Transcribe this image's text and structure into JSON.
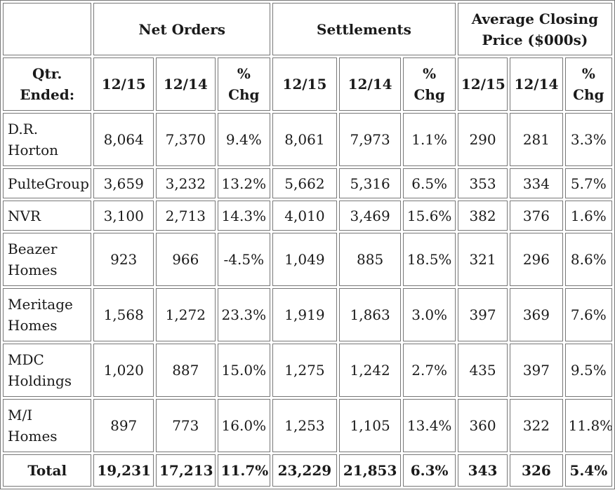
{
  "table": {
    "group_headers": {
      "net_orders": "Net Orders",
      "settlements": "Settlements",
      "avg_price_line1": "Average Closing",
      "avg_price_line2": "Price ($000s)"
    },
    "sub_headers": {
      "qtr_line1": "Qtr.",
      "qtr_line2": "Ended:",
      "col_1215": "12/15",
      "col_1214": "12/14",
      "pct": "%",
      "chg": "Chg"
    },
    "rows": [
      {
        "company_line1": "D.R.",
        "company_line2": "Horton",
        "no_1215": "8,064",
        "no_1214": "7,370",
        "no_chg": "9.4%",
        "st_1215": "8,061",
        "st_1214": "7,973",
        "st_chg": "1.1%",
        "ap_1215": "290",
        "ap_1214": "281",
        "ap_chg": "3.3%"
      },
      {
        "company_line1": "PulteGroup",
        "company_line2": "",
        "no_1215": "3,659",
        "no_1214": "3,232",
        "no_chg": "13.2%",
        "st_1215": "5,662",
        "st_1214": "5,316",
        "st_chg": "6.5%",
        "ap_1215": "353",
        "ap_1214": "334",
        "ap_chg": "5.7%"
      },
      {
        "company_line1": "NVR",
        "company_line2": "",
        "no_1215": "3,100",
        "no_1214": "2,713",
        "no_chg": "14.3%",
        "st_1215": "4,010",
        "st_1214": "3,469",
        "st_chg": "15.6%",
        "ap_1215": "382",
        "ap_1214": "376",
        "ap_chg": "1.6%"
      },
      {
        "company_line1": "Beazer",
        "company_line2": "Homes",
        "no_1215": "923",
        "no_1214": "966",
        "no_chg": "-4.5%",
        "st_1215": "1,049",
        "st_1214": "885",
        "st_chg": "18.5%",
        "ap_1215": "321",
        "ap_1214": "296",
        "ap_chg": "8.6%"
      },
      {
        "company_line1": "Meritage",
        "company_line2": "Homes",
        "no_1215": "1,568",
        "no_1214": "1,272",
        "no_chg": "23.3%",
        "st_1215": "1,919",
        "st_1214": "1,863",
        "st_chg": "3.0%",
        "ap_1215": "397",
        "ap_1214": "369",
        "ap_chg": "7.6%"
      },
      {
        "company_line1": "MDC",
        "company_line2": "Holdings",
        "no_1215": "1,020",
        "no_1214": "887",
        "no_chg": "15.0%",
        "st_1215": "1,275",
        "st_1214": "1,242",
        "st_chg": "2.7%",
        "ap_1215": "435",
        "ap_1214": "397",
        "ap_chg": "9.5%"
      },
      {
        "company_line1": "M/I",
        "company_line2": "Homes",
        "no_1215": "897",
        "no_1214": "773",
        "no_chg": "16.0%",
        "st_1215": "1,253",
        "st_1214": "1,105",
        "st_chg": "13.4%",
        "ap_1215": "360",
        "ap_1214": "322",
        "ap_chg": "11.8%"
      }
    ],
    "total": {
      "label": "Total",
      "no_1215": "19,231",
      "no_1214": "17,213",
      "no_chg": "11.7%",
      "st_1215": "23,229",
      "st_1214": "21,853",
      "st_chg": "6.3%",
      "ap_1215": "343",
      "ap_1214": "326",
      "ap_chg": "5.4%"
    }
  }
}
